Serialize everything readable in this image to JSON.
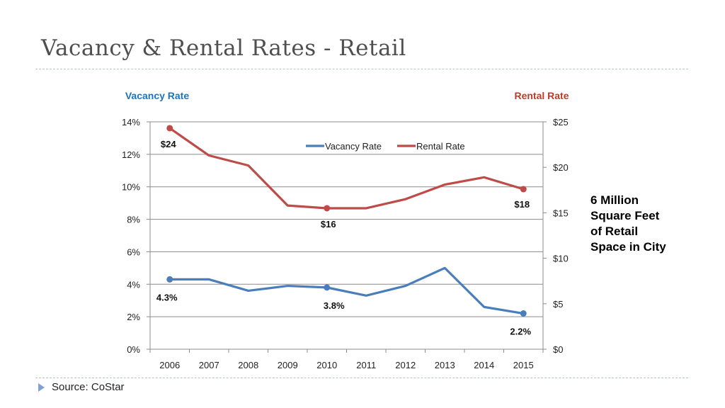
{
  "slide": {
    "title": "Vacancy & Rental Rates - Retail",
    "side_note": [
      "6 Million",
      "Square Feet",
      "of Retail",
      "Space in City"
    ],
    "source": "Source: CoStar",
    "bullet_icon": "triangle-bullet-icon"
  },
  "colors": {
    "vacancy": "#4a7ebb",
    "rental": "#be4b48",
    "vacancy_axis_title": "#1f73b7",
    "rental_axis_title": "#c0392b"
  },
  "chart_data": {
    "type": "line",
    "categories": [
      "2006",
      "2007",
      "2008",
      "2009",
      "2010",
      "2011",
      "2012",
      "2013",
      "2014",
      "2015"
    ],
    "series": [
      {
        "name": "Vacancy Rate",
        "axis": "left",
        "values": [
          4.3,
          4.3,
          3.6,
          3.9,
          3.8,
          3.3,
          3.9,
          5.0,
          2.6,
          2.2
        ],
        "marker_indices": [
          0,
          4,
          9
        ],
        "labels": [
          {
            "index": 0,
            "text": "4.3%"
          },
          {
            "index": 4,
            "text": "3.8%"
          },
          {
            "index": 9,
            "text": "2.2%"
          }
        ]
      },
      {
        "name": "Rental Rate",
        "axis": "right",
        "values": [
          24.3,
          21.3,
          20.2,
          15.8,
          15.5,
          15.5,
          16.5,
          18.1,
          18.9,
          17.6
        ],
        "marker_indices": [
          0,
          4,
          9
        ],
        "labels": [
          {
            "index": 0,
            "text": "$24"
          },
          {
            "index": 4,
            "text": "$16"
          },
          {
            "index": 9,
            "text": "$18"
          }
        ]
      }
    ],
    "y_left": {
      "title": "Vacancy Rate",
      "range": [
        0,
        14
      ],
      "ticks": [
        0,
        2,
        4,
        6,
        8,
        10,
        12,
        14
      ],
      "tick_labels": [
        "0%",
        "2%",
        "4%",
        "6%",
        "8%",
        "10%",
        "12%",
        "14%"
      ]
    },
    "y_right": {
      "title": "Rental Rate",
      "range": [
        0,
        25
      ],
      "ticks": [
        0,
        5,
        10,
        15,
        20,
        25
      ],
      "tick_labels": [
        "$0",
        "$5",
        "$10",
        "$15",
        "$20",
        "$25"
      ]
    },
    "grid": "horizontal",
    "legend": {
      "position": "top-center",
      "entries": [
        "Vacancy Rate",
        "Rental Rate"
      ]
    }
  }
}
